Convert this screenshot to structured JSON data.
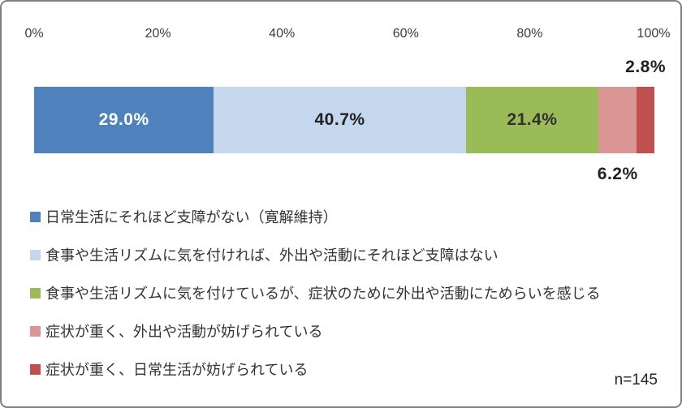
{
  "window": {
    "background_color": "#FFFFFF",
    "border_color": "#808080"
  },
  "chart_data": {
    "type": "bar",
    "orientation": "horizontal-stacked",
    "title": "",
    "xlabel": "",
    "ylabel": "",
    "xlim": [
      0,
      100
    ],
    "x_ticks": [
      "0%",
      "20%",
      "40%",
      "60%",
      "80%",
      "100%"
    ],
    "grid": false,
    "legend_position": "bottom-left",
    "sample_size": "n=145",
    "series": [
      {
        "name": "日常生活にそれほど支障がない（寛解維持）",
        "value": 29.0,
        "value_label": "29.0%",
        "color": "#4F81BD",
        "label_placement": "inside",
        "label_color": "#FFFFFF"
      },
      {
        "name": "食事や生活リズムに気を付ければ、外出や活動にそれほど支障はない",
        "value": 40.7,
        "value_label": "40.7%",
        "color": "#C5D7ED",
        "label_placement": "inside",
        "label_color": "#212121"
      },
      {
        "name": "食事や生活リズムに気を付けているが、症状のために外出や活動にためらいを感じる",
        "value": 21.4,
        "value_label": "21.4%",
        "color": "#9BBB59",
        "label_placement": "inside",
        "label_color": "#303030"
      },
      {
        "name": "症状が重く、外出や活動が妨げられている",
        "value": 6.2,
        "value_label": "6.2%",
        "color": "#D99694",
        "label_placement": "below",
        "label_color": "#212121"
      },
      {
        "name": "症状が重く、日常生活が妨げられている",
        "value": 2.8,
        "value_label": "2.8%",
        "color": "#C0504D",
        "label_placement": "above",
        "label_color": "#212121"
      }
    ]
  }
}
